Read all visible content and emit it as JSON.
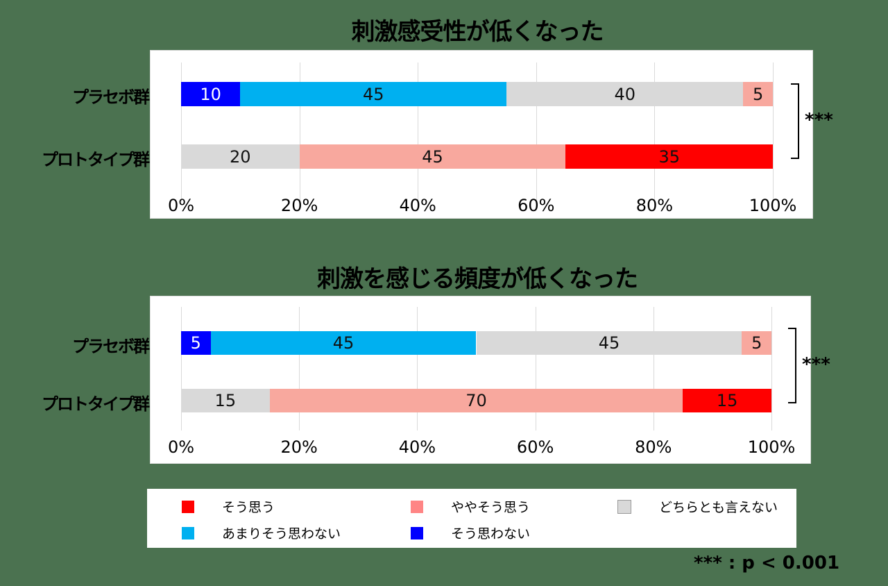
{
  "chart_data": [
    {
      "type": "bar",
      "orientation": "horizontal",
      "stacked": "percent",
      "title": "刺激感受性が低くなった",
      "categories": [
        "プラセボ群",
        "プロトタイプ群"
      ],
      "xlim": [
        0,
        100
      ],
      "xticks": [
        "0%",
        "20%",
        "40%",
        "60%",
        "80%",
        "100%"
      ],
      "grid": true,
      "series": [
        {
          "name": "そう思わない",
          "values": [
            10,
            0
          ]
        },
        {
          "name": "あまりそう思わない",
          "values": [
            45,
            0
          ]
        },
        {
          "name": "どちらとも言えない",
          "values": [
            40,
            20
          ]
        },
        {
          "name": "ややそう思う",
          "values": [
            5,
            45
          ]
        },
        {
          "name": "そう思う",
          "values": [
            0,
            35
          ]
        }
      ],
      "significance": "***"
    },
    {
      "type": "bar",
      "orientation": "horizontal",
      "stacked": "percent",
      "title": "刺激を感じる頻度が低くなった",
      "categories": [
        "プラセボ群",
        "プロトタイプ群"
      ],
      "xlim": [
        0,
        100
      ],
      "xticks": [
        "0%",
        "20%",
        "40%",
        "60%",
        "80%",
        "100%"
      ],
      "grid": true,
      "series": [
        {
          "name": "そう思わない",
          "values": [
            5,
            0
          ]
        },
        {
          "name": "あまりそう思わない",
          "values": [
            45,
            0
          ]
        },
        {
          "name": "どちらとも言えない",
          "values": [
            45,
            15
          ]
        },
        {
          "name": "ややそう思う",
          "values": [
            5,
            70
          ]
        },
        {
          "name": "そう思う",
          "values": [
            0,
            15
          ]
        }
      ],
      "significance": "***"
    }
  ],
  "colors": {
    "そう思わない": "#0000ff",
    "あまりそう思わない": "#00b0f0",
    "どちらとも言えない": "#d9d9d9",
    "ややそう思う": "#f8a89e",
    "そう思う": "#ff0000"
  },
  "label_colors": {
    "そう思わない": "#ffffff"
  },
  "legend": [
    {
      "label": "そう思う",
      "color": "#ff0000"
    },
    {
      "label": "ややそう思う",
      "color": "#ff8585"
    },
    {
      "label": "どちらとも言えない",
      "color": "#d9d9d9"
    },
    {
      "label": "あまりそう思わない",
      "color": "#00b0f0"
    },
    {
      "label": "そう思わない",
      "color": "#0000ff"
    }
  ],
  "footnote": "*** : p < 0.001"
}
